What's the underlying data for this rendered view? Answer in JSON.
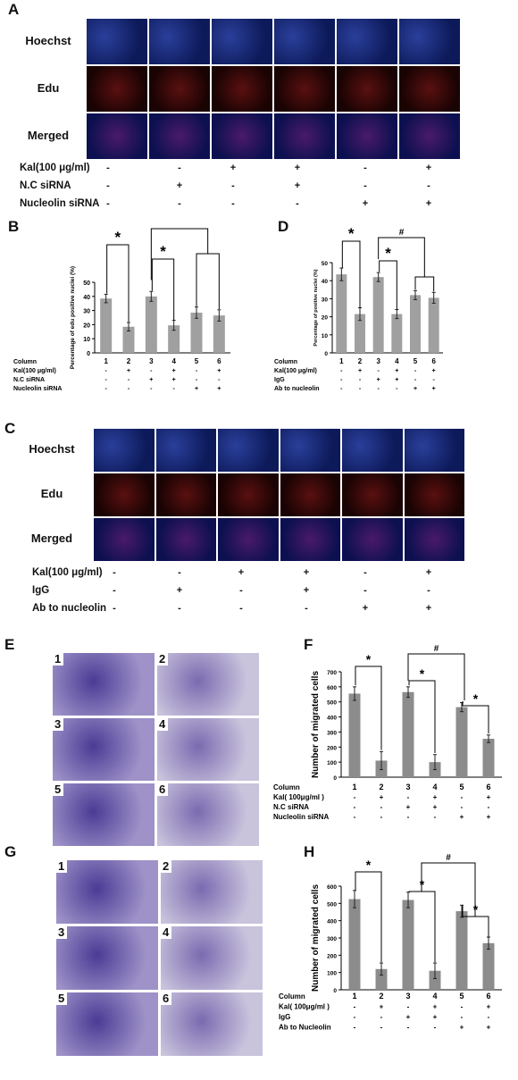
{
  "panels": {
    "A": {
      "letter": "A"
    },
    "B": {
      "letter": "B"
    },
    "C": {
      "letter": "C"
    },
    "D": {
      "letter": "D"
    },
    "E": {
      "letter": "E"
    },
    "F": {
      "letter": "F"
    },
    "G": {
      "letter": "G"
    },
    "H": {
      "letter": "H"
    }
  },
  "fluorescence": {
    "row_labels": [
      "Hoechst",
      "Edu",
      "Merged"
    ]
  },
  "panel_a_conditions": [
    {
      "label": "Kal(100 μg/ml)",
      "values": [
        "-",
        "-",
        "+",
        "+",
        "-",
        "+"
      ]
    },
    {
      "label": "N.C siRNA",
      "values": [
        "-",
        "+",
        "-",
        "+",
        "-",
        "-"
      ]
    },
    {
      "label": "Nucleolin siRNA",
      "values": [
        "-",
        "-",
        "-",
        "-",
        "+",
        "+"
      ]
    }
  ],
  "panel_c_conditions": [
    {
      "label": "Kal(100 μg/ml)",
      "values": [
        "-",
        "-",
        "+",
        "+",
        "-",
        "+"
      ]
    },
    {
      "label": "IgG",
      "values": [
        "-",
        "+",
        "-",
        "+",
        "-",
        "-"
      ]
    },
    {
      "label": "Ab to nucleolin",
      "values": [
        "-",
        "-",
        "-",
        "-",
        "+",
        "+"
      ]
    }
  ],
  "panel_b_rows": [
    {
      "label": "Column",
      "values": [
        "1",
        "2",
        "3",
        "4",
        "5",
        "6"
      ]
    },
    {
      "label": "Kal(100 μg/ml)",
      "values": [
        "-",
        "+",
        "-",
        "+",
        "-",
        "+"
      ]
    },
    {
      "label": "N.C siRNA",
      "values": [
        "-",
        "-",
        "+",
        "+",
        "-",
        "-"
      ]
    },
    {
      "label": "Nucleolin siRNA",
      "values": [
        "-",
        "-",
        "-",
        "-",
        "+",
        "+"
      ]
    }
  ],
  "panel_d_rows": [
    {
      "label": "Column",
      "values": [
        "1",
        "2",
        "3",
        "4",
        "5",
        "6"
      ]
    },
    {
      "label": "Kal(100 μg/ml)",
      "values": [
        "-",
        "+",
        "-",
        "+",
        "-",
        "+"
      ]
    },
    {
      "label": "IgG",
      "values": [
        "-",
        "-",
        "+",
        "+",
        "-",
        "-"
      ]
    },
    {
      "label": "Ab to nucleolin",
      "values": [
        "-",
        "-",
        "-",
        "-",
        "+",
        "+"
      ]
    }
  ],
  "panel_f_rows": [
    {
      "label": "Column",
      "values": [
        "1",
        "2",
        "3",
        "4",
        "5",
        "6"
      ]
    },
    {
      "label": "Kal( 100μg/ml )",
      "values": [
        "-",
        "+",
        "-",
        "+",
        "-",
        "+"
      ]
    },
    {
      "label": "N.C siRNA",
      "values": [
        "-",
        "-",
        "+",
        "+",
        "-",
        "-"
      ]
    },
    {
      "label": "Nucleolin siRNA",
      "values": [
        "-",
        "-",
        "-",
        "-",
        "+",
        "+"
      ]
    }
  ],
  "panel_h_rows": [
    {
      "label": "Column",
      "values": [
        "1",
        "2",
        "3",
        "4",
        "5",
        "6"
      ]
    },
    {
      "label": "Kal( 100μg/ml )",
      "values": [
        "-",
        "+",
        "-",
        "+",
        "-",
        "+"
      ]
    },
    {
      "label": "IgG",
      "values": [
        "-",
        "-",
        "+",
        "+",
        "-",
        "-"
      ]
    },
    {
      "label": "Ab to Nucleolin",
      "values": [
        "-",
        "-",
        "-",
        "-",
        "+",
        "+"
      ]
    }
  ],
  "migration_tiles": {
    "E": [
      "1",
      "2",
      "3",
      "4",
      "5",
      "6"
    ],
    "G": [
      "1",
      "2",
      "3",
      "4",
      "5",
      "6"
    ]
  },
  "sig_marks": {
    "star": "*",
    "hash": "#"
  },
  "chart_data": [
    {
      "panel": "B",
      "type": "bar",
      "categories": [
        "1",
        "2",
        "3",
        "4",
        "5",
        "6"
      ],
      "values": [
        38.5,
        18.5,
        40,
        19.5,
        28.5,
        26.5
      ],
      "errors": [
        3,
        3,
        3.5,
        3.5,
        4,
        4
      ],
      "ylabel": "Percentage of edu positive nuclei (%)",
      "ylim": [
        0,
        50
      ],
      "yticks": [
        "0",
        "10",
        "20",
        "30",
        "40",
        "50"
      ],
      "bar_color": "#a0a0a0"
    },
    {
      "panel": "D",
      "type": "bar",
      "categories": [
        "1",
        "2",
        "3",
        "4",
        "5",
        "6"
      ],
      "values": [
        43.5,
        21.5,
        42,
        21.5,
        32,
        30.5
      ],
      "errors": [
        3.5,
        3.5,
        2.5,
        2.5,
        2.5,
        3
      ],
      "ylabel": "Percentage of positive nuclei (%)",
      "ylim": [
        0,
        50
      ],
      "yticks": [
        "0",
        "10",
        "20",
        "30",
        "40",
        "50"
      ],
      "bar_color": "#a0a0a0"
    },
    {
      "panel": "F",
      "type": "bar",
      "categories": [
        "1",
        "2",
        "3",
        "4",
        "5",
        "6"
      ],
      "values": [
        555,
        110,
        565,
        100,
        465,
        255
      ],
      "errors": [
        45,
        60,
        35,
        50,
        30,
        25
      ],
      "ylabel": "Number of migrated cells",
      "ylim": [
        0,
        700
      ],
      "yticks": [
        "0",
        "100",
        "200",
        "300",
        "400",
        "500",
        "600",
        "700"
      ],
      "bar_color": "#8c8c8c"
    },
    {
      "panel": "H",
      "type": "bar",
      "categories": [
        "1",
        "2",
        "3",
        "4",
        "5",
        "6"
      ],
      "values": [
        525,
        120,
        520,
        110,
        455,
        270
      ],
      "errors": [
        50,
        35,
        45,
        45,
        35,
        35
      ],
      "ylabel": "Number of migrated cells",
      "ylim": [
        0,
        600
      ],
      "yticks": [
        "0",
        "100",
        "200",
        "300",
        "400",
        "500",
        "600"
      ],
      "bar_color": "#8c8c8c"
    }
  ]
}
